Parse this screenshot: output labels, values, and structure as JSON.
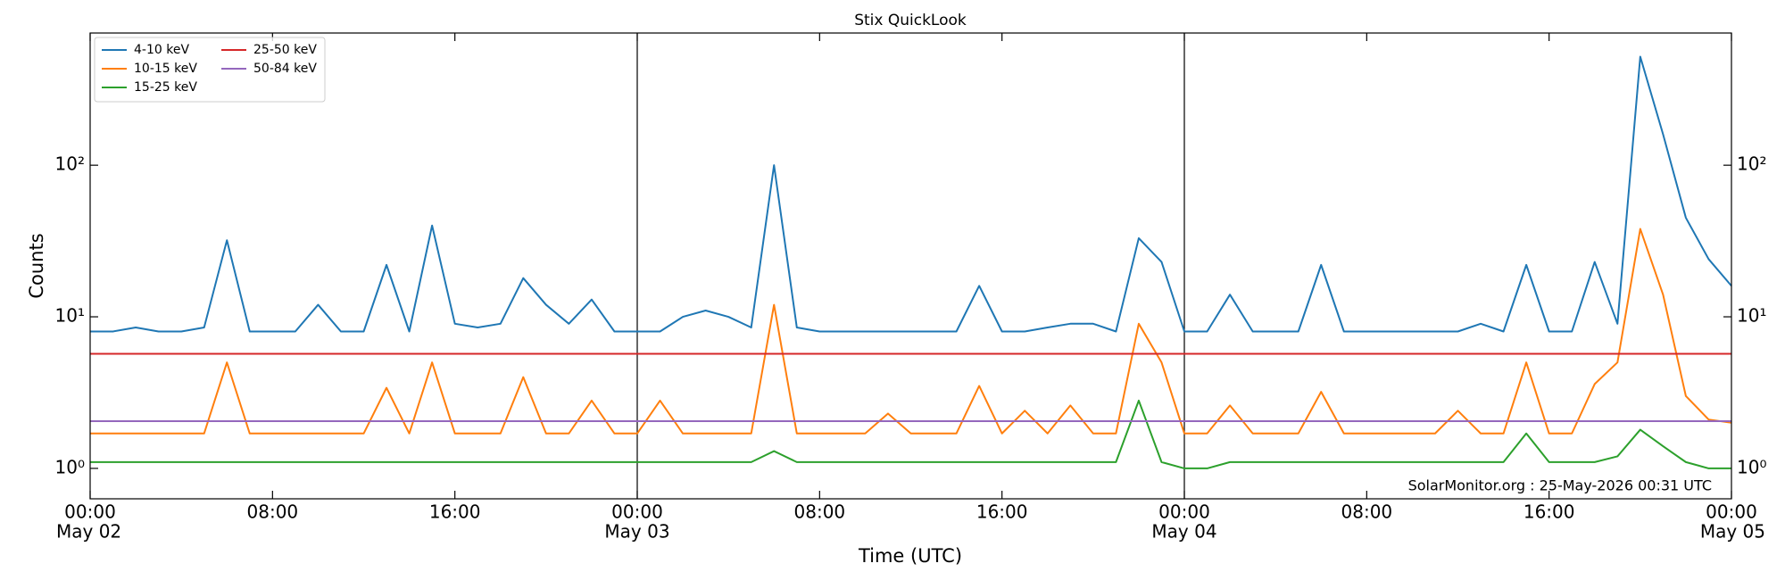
{
  "chart_data": {
    "type": "line",
    "title": "Stix QuickLook",
    "xlabel": "Time (UTC)",
    "ylabel": "Counts",
    "annotation": "SolarMonitor.org : 25-May-2026 00:31 UTC",
    "yscale": "log",
    "legend": "upper left",
    "xlim": [
      "May 02 00:00",
      "May 05 00:00"
    ],
    "xticks": [
      {
        "value": "May 02 00:00",
        "label": "00:00",
        "sublabel": "May 02"
      },
      {
        "value": "May 02 08:00",
        "label": "08:00"
      },
      {
        "value": "May 02 16:00",
        "label": "16:00"
      },
      {
        "value": "May 03 00:00",
        "label": "00:00",
        "sublabel": "May 03"
      },
      {
        "value": "May 03 08:00",
        "label": "08:00"
      },
      {
        "value": "May 03 16:00",
        "label": "16:00"
      },
      {
        "value": "May 04 00:00",
        "label": "00:00",
        "sublabel": "May 04"
      },
      {
        "value": "May 04 08:00",
        "label": "08:00"
      },
      {
        "value": "May 04 16:00",
        "label": "16:00"
      },
      {
        "value": "May 05 00:00",
        "label": "00:00",
        "sublabel": "May 05"
      }
    ],
    "ylim": [
      0.63,
      745
    ],
    "yticks": [
      {
        "value": 1,
        "label": "10⁰"
      },
      {
        "value": 10,
        "label": "10¹"
      },
      {
        "value": 100,
        "label": "10²"
      }
    ],
    "x": [
      "May 02 00:00",
      "May 02 01:00",
      "May 02 02:00",
      "May 02 03:00",
      "May 02 04:00",
      "May 02 05:00",
      "May 02 06:00",
      "May 02 07:00",
      "May 02 08:00",
      "May 02 09:00",
      "May 02 10:00",
      "May 02 11:00",
      "May 02 12:00",
      "May 02 13:00",
      "May 02 14:00",
      "May 02 15:00",
      "May 02 16:00",
      "May 02 17:00",
      "May 02 18:00",
      "May 02 19:00",
      "May 02 20:00",
      "May 02 21:00",
      "May 02 22:00",
      "May 02 23:00",
      "May 03 00:00",
      "May 03 01:00",
      "May 03 02:00",
      "May 03 03:00",
      "May 03 04:00",
      "May 03 05:00",
      "May 03 06:00",
      "May 03 07:00",
      "May 03 08:00",
      "May 03 09:00",
      "May 03 10:00",
      "May 03 11:00",
      "May 03 12:00",
      "May 03 13:00",
      "May 03 14:00",
      "May 03 15:00",
      "May 03 16:00",
      "May 03 17:00",
      "May 03 18:00",
      "May 03 19:00",
      "May 03 20:00",
      "May 03 21:00",
      "May 03 22:00",
      "May 03 23:00",
      "May 04 00:00",
      "May 04 01:00",
      "May 04 02:00",
      "May 04 03:00",
      "May 04 04:00",
      "May 04 05:00",
      "May 04 06:00",
      "May 04 07:00",
      "May 04 08:00",
      "May 04 09:00",
      "May 04 10:00",
      "May 04 11:00",
      "May 04 12:00",
      "May 04 13:00",
      "May 04 14:00",
      "May 04 15:00",
      "May 04 16:00",
      "May 04 17:00",
      "May 04 18:00",
      "May 04 19:00",
      "May 04 20:00",
      "May 04 21:00",
      "May 04 22:00",
      "May 04 23:00",
      "May 05 00:00"
    ],
    "series": [
      {
        "name": "4-10 keV",
        "color": "#1f77b4",
        "values": [
          8,
          8,
          8.5,
          8,
          8,
          8.5,
          32,
          8,
          8,
          8,
          12,
          8,
          8,
          22,
          8,
          40,
          9,
          8.5,
          9,
          18,
          12,
          9,
          13,
          8,
          8,
          8,
          10,
          11,
          10,
          8.5,
          100,
          8.5,
          8,
          8,
          8,
          8,
          8,
          8,
          8,
          16,
          8,
          8,
          8.5,
          9,
          9,
          8,
          33,
          23,
          8,
          8,
          14,
          8,
          8,
          8,
          22,
          8,
          8,
          8,
          8,
          8,
          8,
          9,
          8,
          22,
          8,
          8,
          23,
          9,
          520,
          160,
          45,
          24,
          16
        ]
      },
      {
        "name": "10-15 keV",
        "color": "#ff7f0e",
        "values": [
          1.7,
          1.7,
          1.7,
          1.7,
          1.7,
          1.7,
          5,
          1.7,
          1.7,
          1.7,
          1.7,
          1.7,
          1.7,
          3.4,
          1.7,
          5,
          1.7,
          1.7,
          1.7,
          4,
          1.7,
          1.7,
          2.8,
          1.7,
          1.7,
          2.8,
          1.7,
          1.7,
          1.7,
          1.7,
          12,
          1.7,
          1.7,
          1.7,
          1.7,
          2.3,
          1.7,
          1.7,
          1.7,
          3.5,
          1.7,
          2.4,
          1.7,
          2.6,
          1.7,
          1.7,
          9,
          5,
          1.7,
          1.7,
          2.6,
          1.7,
          1.7,
          1.7,
          3.2,
          1.7,
          1.7,
          1.7,
          1.7,
          1.7,
          2.4,
          1.7,
          1.7,
          5,
          1.7,
          1.7,
          3.6,
          5,
          38,
          14,
          3,
          2.1,
          2
        ]
      },
      {
        "name": "15-25 keV",
        "color": "#2ca02c",
        "values": [
          1.1,
          1.1,
          1.1,
          1.1,
          1.1,
          1.1,
          1.1,
          1.1,
          1.1,
          1.1,
          1.1,
          1.1,
          1.1,
          1.1,
          1.1,
          1.1,
          1.1,
          1.1,
          1.1,
          1.1,
          1.1,
          1.1,
          1.1,
          1.1,
          1.1,
          1.1,
          1.1,
          1.1,
          1.1,
          1.1,
          1.3,
          1.1,
          1.1,
          1.1,
          1.1,
          1.1,
          1.1,
          1.1,
          1.1,
          1.1,
          1.1,
          1.1,
          1.1,
          1.1,
          1.1,
          1.1,
          2.8,
          1.1,
          1.0,
          1.0,
          1.1,
          1.1,
          1.1,
          1.1,
          1.1,
          1.1,
          1.1,
          1.1,
          1.1,
          1.1,
          1.1,
          1.1,
          1.1,
          1.7,
          1.1,
          1.1,
          1.1,
          1.2,
          1.8,
          1.4,
          1.1,
          1.0,
          1.0
        ]
      },
      {
        "name": "25-50 keV",
        "color": "#d62728",
        "values": [
          5.7,
          5.7,
          5.7,
          5.7,
          5.7,
          5.7,
          5.7,
          5.7,
          5.7,
          5.7,
          5.7,
          5.7,
          5.7,
          5.7,
          5.7,
          5.7,
          5.7,
          5.7,
          5.7,
          5.7,
          5.7,
          5.7,
          5.7,
          5.7,
          5.7,
          5.7,
          5.7,
          5.7,
          5.7,
          5.7,
          5.7,
          5.7,
          5.7,
          5.7,
          5.7,
          5.7,
          5.7,
          5.7,
          5.7,
          5.7,
          5.7,
          5.7,
          5.7,
          5.7,
          5.7,
          5.7,
          5.7,
          5.7,
          5.7,
          5.7,
          5.7,
          5.7,
          5.7,
          5.7,
          5.7,
          5.7,
          5.7,
          5.7,
          5.7,
          5.7,
          5.7,
          5.7,
          5.7,
          5.7,
          5.7,
          5.7,
          5.7,
          5.7,
          5.7,
          5.7,
          5.7,
          5.7,
          5.7
        ]
      },
      {
        "name": "50-84 keV",
        "color": "#9467bd",
        "values": [
          2.05,
          2.05,
          2.05,
          2.05,
          2.05,
          2.05,
          2.05,
          2.05,
          2.05,
          2.05,
          2.05,
          2.05,
          2.05,
          2.05,
          2.05,
          2.05,
          2.05,
          2.05,
          2.05,
          2.05,
          2.05,
          2.05,
          2.05,
          2.05,
          2.05,
          2.05,
          2.05,
          2.05,
          2.05,
          2.05,
          2.05,
          2.05,
          2.05,
          2.05,
          2.05,
          2.05,
          2.05,
          2.05,
          2.05,
          2.05,
          2.05,
          2.05,
          2.05,
          2.05,
          2.05,
          2.05,
          2.05,
          2.05,
          2.05,
          2.05,
          2.05,
          2.05,
          2.05,
          2.05,
          2.05,
          2.05,
          2.05,
          2.05,
          2.05,
          2.05,
          2.05,
          2.05,
          2.05,
          2.05,
          2.05,
          2.05,
          2.05,
          2.05,
          2.05,
          2.05,
          2.05,
          2.05,
          2.05
        ]
      }
    ]
  }
}
